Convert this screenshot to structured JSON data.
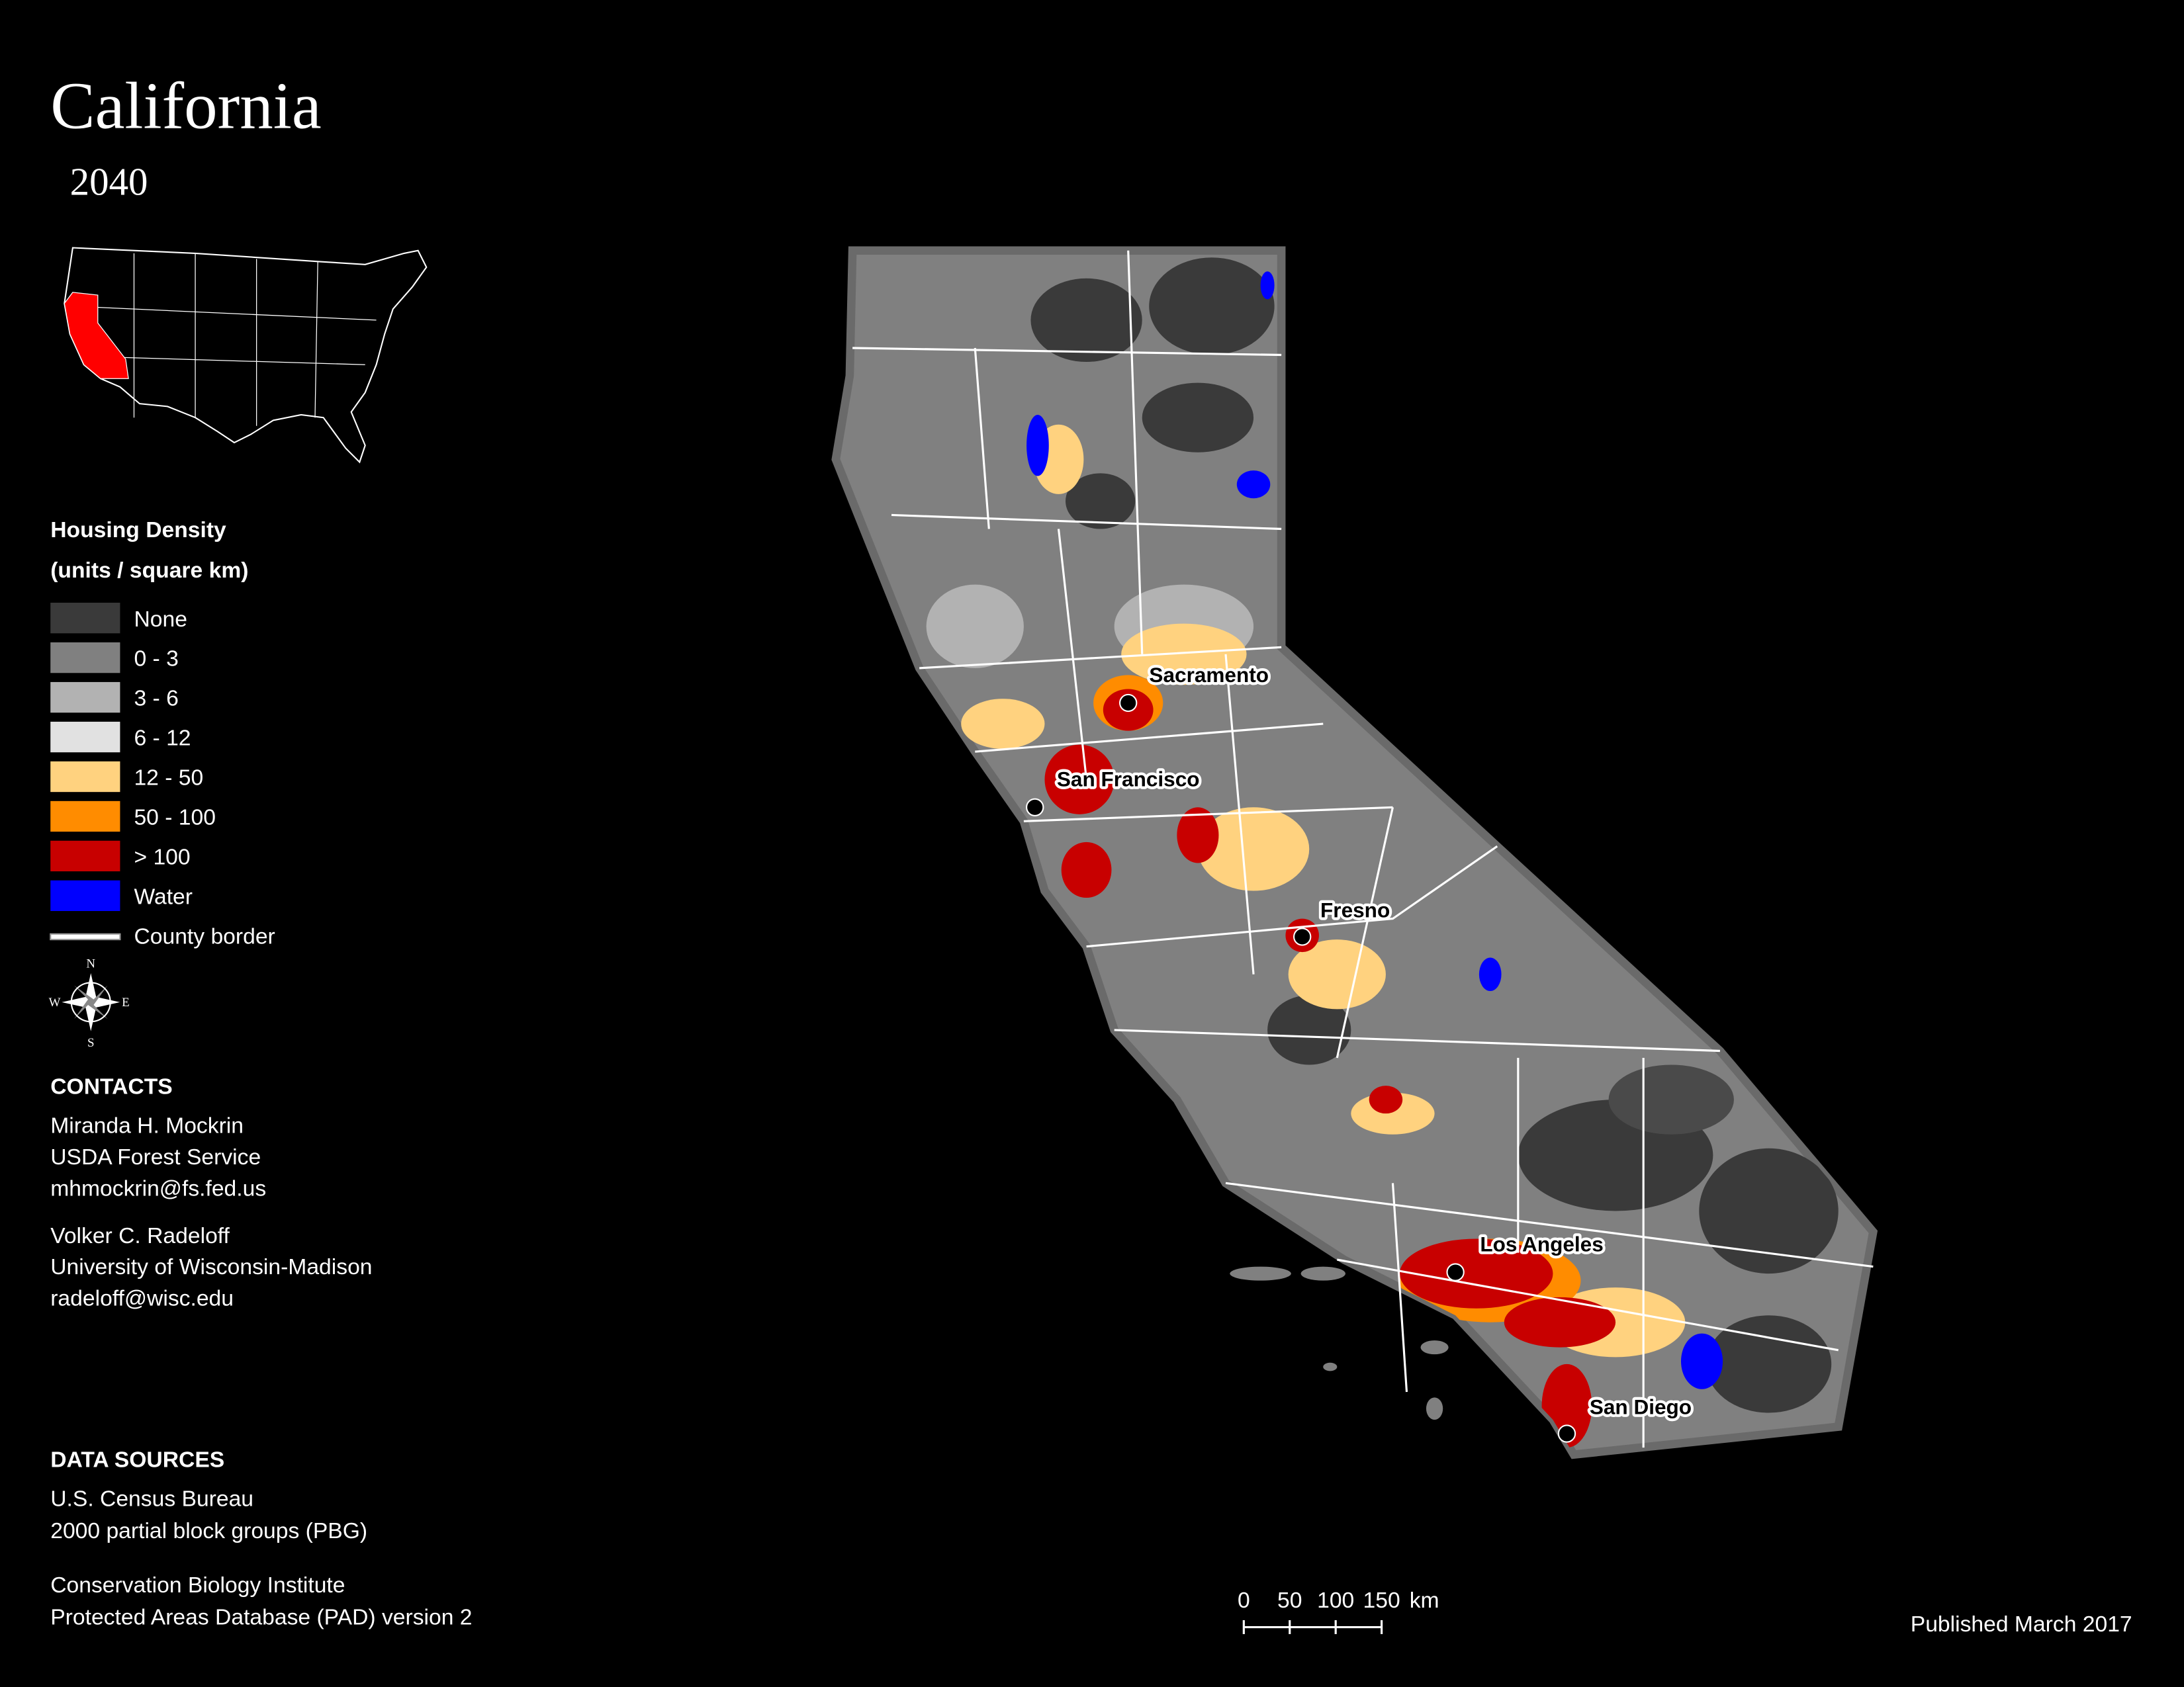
{
  "title": "California",
  "subtitle": "2040",
  "legend": {
    "title": "Housing Density",
    "subtitle": "(units / square km)",
    "items": [
      {
        "label": "None",
        "color": "#3a3a3a"
      },
      {
        "label": "0 - 3",
        "color": "#808080"
      },
      {
        "label": "3 - 6",
        "color": "#b2b2b2"
      },
      {
        "label": "6 - 12",
        "color": "#e1e1e1"
      },
      {
        "label": "12 - 50",
        "color": "#ffd27f"
      },
      {
        "label": "50 - 100",
        "color": "#ff8c00"
      },
      {
        "label": "> 100",
        "color": "#c80000"
      },
      {
        "label": "Water",
        "color": "#0000ff"
      },
      {
        "label": "County border",
        "color": "#ffffff"
      }
    ]
  },
  "compass": {
    "n": "N",
    "e": "E",
    "s": "S",
    "w": "W"
  },
  "cities": [
    "Sacramento",
    "San Francisco",
    "Fresno",
    "Los Angeles",
    "San Diego"
  ],
  "contacts": {
    "title": "CONTACTS",
    "people": [
      [
        "Miranda H. Mockrin",
        "USDA Forest Service",
        "mhmockrin@fs.fed.us"
      ],
      [
        "Volker C. Radeloff",
        "University of Wisconsin-Madison",
        "radeloff@wisc.edu"
      ]
    ]
  },
  "data_sources": {
    "title": "DATA SOURCES",
    "entries": [
      [
        "U.S. Census Bureau",
        "2000 partial block groups (PBG)"
      ],
      [
        "Conservation Biology Institute",
        "Protected Areas Database (PAD) version 2"
      ]
    ]
  },
  "scale_bar": {
    "ticks": [
      0,
      50,
      100,
      150
    ],
    "unit": "km"
  },
  "published": "Published March 2017"
}
